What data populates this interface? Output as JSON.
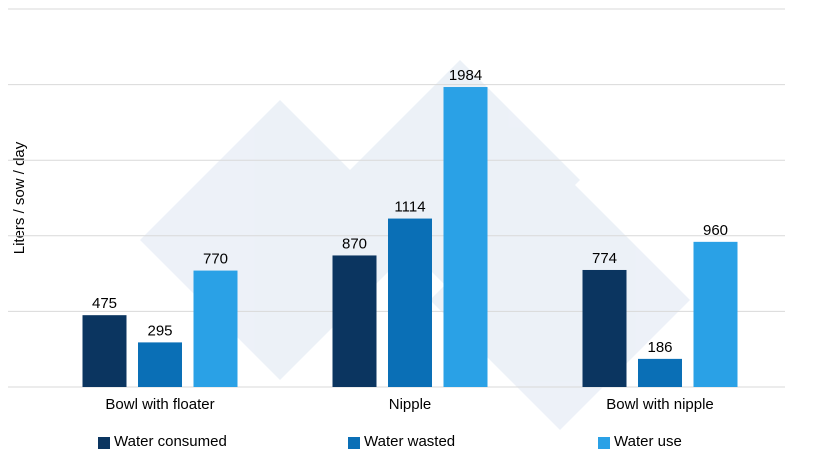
{
  "chart_data": {
    "type": "bar",
    "y_label": "Liters / sow / day",
    "categories": [
      "Bowl with floater",
      "Nipple",
      "Bowl with nipple"
    ],
    "series": [
      {
        "name": "Water consumed",
        "color": "#0b3560",
        "values": [
          475,
          870,
          774
        ]
      },
      {
        "name": "Water wasted",
        "color": "#0a6fb6",
        "values": [
          295,
          1114,
          186
        ]
      },
      {
        "name": "Water use",
        "color": "#2aa1e6",
        "values": [
          770,
          1984,
          960
        ]
      }
    ],
    "ylim": [
      0,
      2500
    ],
    "yticks": [
      0,
      500,
      1000,
      1500,
      2000,
      2500
    ],
    "grid": true,
    "show_y_tick_labels": false,
    "legend": "bottom"
  }
}
